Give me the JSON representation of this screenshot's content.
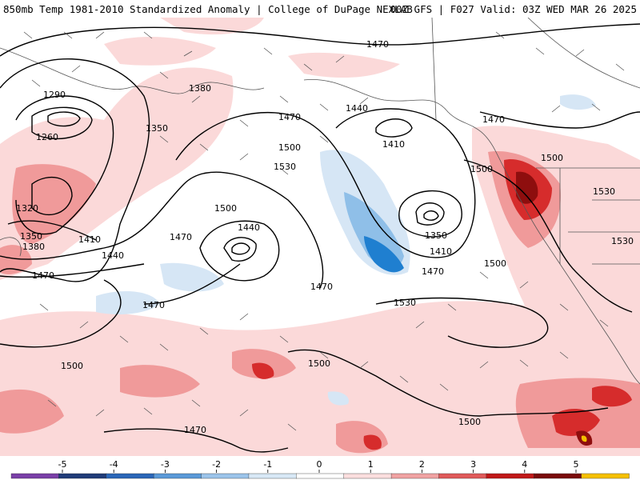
{
  "header": {
    "title_left": "850mb Temp 1981-2010 Standardized Anomaly | College of DuPage NEXLAB",
    "title_right": "00Z GFS | F027 Valid: 03Z WED MAR 26 2025"
  },
  "map": {
    "variable": "850mb temperature standardized anomaly",
    "contour_variable": "850mb geopotential height (dam)",
    "contour_labels": [
      "1290",
      "1260",
      "1320",
      "1350",
      "1380",
      "1410",
      "1440",
      "1470",
      "1380",
      "1350",
      "1470",
      "1500",
      "1530",
      "1500",
      "1470",
      "1440",
      "1470",
      "1470",
      "1440",
      "1410",
      "1350",
      "1410",
      "1470",
      "1500",
      "1530",
      "1530",
      "1500",
      "1500",
      "1500",
      "1500",
      "1470",
      "1470",
      "1500",
      "1530"
    ],
    "colors": {
      "strong_negative": "#1f7fd0",
      "moderate_negative": "#8fbfe8",
      "weak_negative": "#d6e6f5",
      "weak_positive": "#fbd9d9",
      "moderate_positive": "#f09a9a",
      "strong_positive": "#d62c2c",
      "extreme_positive": "#8e0e0e",
      "coast": "#555555"
    }
  },
  "colorbar": {
    "ticks": [
      "-5",
      "-4",
      "-3",
      "-2",
      "-1",
      "0",
      "1",
      "2",
      "3",
      "4",
      "5"
    ],
    "segments": [
      "#7a3fa8",
      "#1f3b78",
      "#2a66b8",
      "#5a9ad8",
      "#9cc4ea",
      "#d8e8f6",
      "#ffffff",
      "#fbdede",
      "#f0a3a3",
      "#e05a5a",
      "#c01818",
      "#7a0a0a",
      "#f5c000"
    ]
  }
}
